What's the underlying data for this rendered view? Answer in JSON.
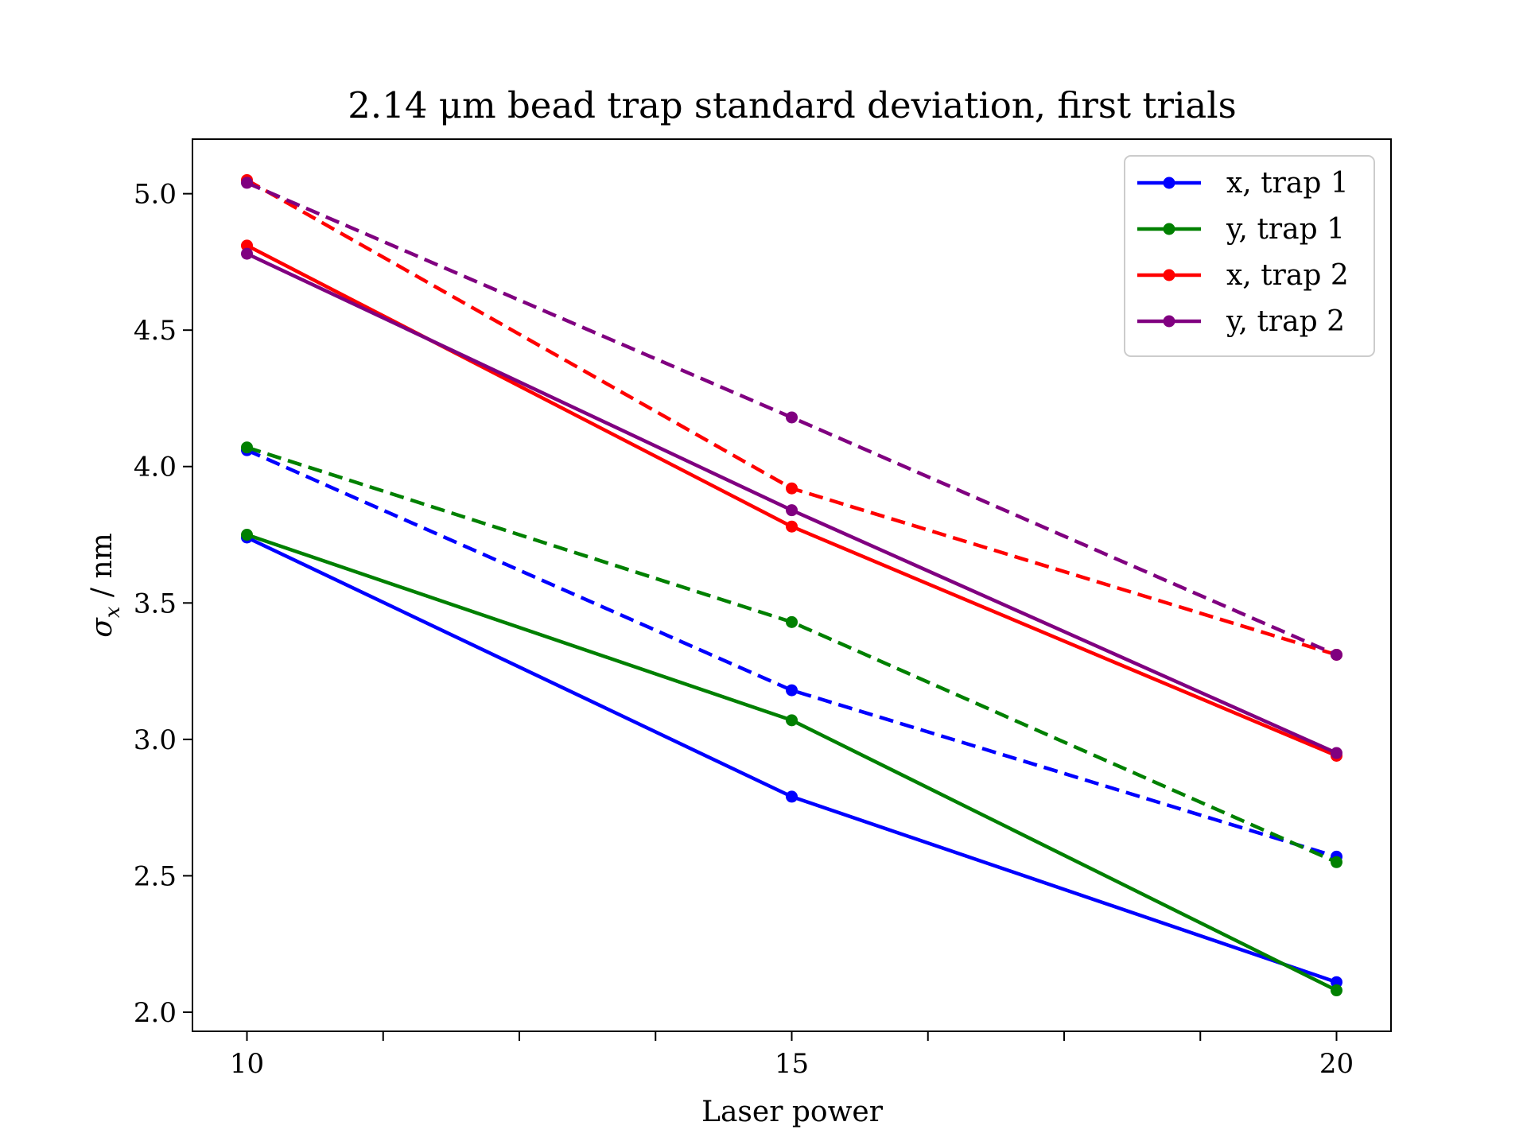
{
  "chart_data": {
    "type": "line",
    "title": "2.14 μm bead trap standard deviation, first trials",
    "xlabel": "Laser power",
    "ylabel": "σ",
    "ylabel_subscript": "x",
    "ylabel_unit": " / nm",
    "xlim": [
      9.5,
      20.5
    ],
    "ylim": [
      1.93,
      5.2
    ],
    "x": [
      10,
      15,
      20
    ],
    "x_ticks": [
      10,
      15,
      20
    ],
    "x_tick_labels": [
      "10",
      "15",
      "20"
    ],
    "x_minor_ticks": [
      11.25,
      12.5,
      13.75,
      16.25,
      17.5,
      18.75
    ],
    "y_ticks": [
      2.0,
      2.5,
      3.0,
      3.5,
      4.0,
      4.5,
      5.0
    ],
    "y_tick_labels": [
      "2.0",
      "2.5",
      "3.0",
      "3.5",
      "4.0",
      "4.5",
      "5.0"
    ],
    "grid": false,
    "legend_position": "top-right",
    "series": [
      {
        "name": "x, trap 1",
        "color": "#0000ff",
        "style": "solid",
        "values": [
          3.74,
          2.79,
          2.11
        ]
      },
      {
        "name": "y, trap 1",
        "color": "#008000",
        "style": "solid",
        "values": [
          3.75,
          3.07,
          2.08
        ]
      },
      {
        "name": "x, trap 2",
        "color": "#ff0000",
        "style": "solid",
        "values": [
          4.81,
          3.78,
          2.94
        ]
      },
      {
        "name": "y, trap 2",
        "color": "#800080",
        "style": "solid",
        "values": [
          4.78,
          3.84,
          2.95
        ]
      },
      {
        "color": "#0000ff",
        "style": "dashed",
        "values": [
          4.06,
          3.18,
          2.57
        ]
      },
      {
        "color": "#008000",
        "style": "dashed",
        "values": [
          4.07,
          3.43,
          2.55
        ]
      },
      {
        "color": "#ff0000",
        "style": "dashed",
        "values": [
          5.05,
          3.92,
          3.31
        ]
      },
      {
        "color": "#800080",
        "style": "dashed",
        "values": [
          5.04,
          4.18,
          3.31
        ]
      }
    ]
  }
}
